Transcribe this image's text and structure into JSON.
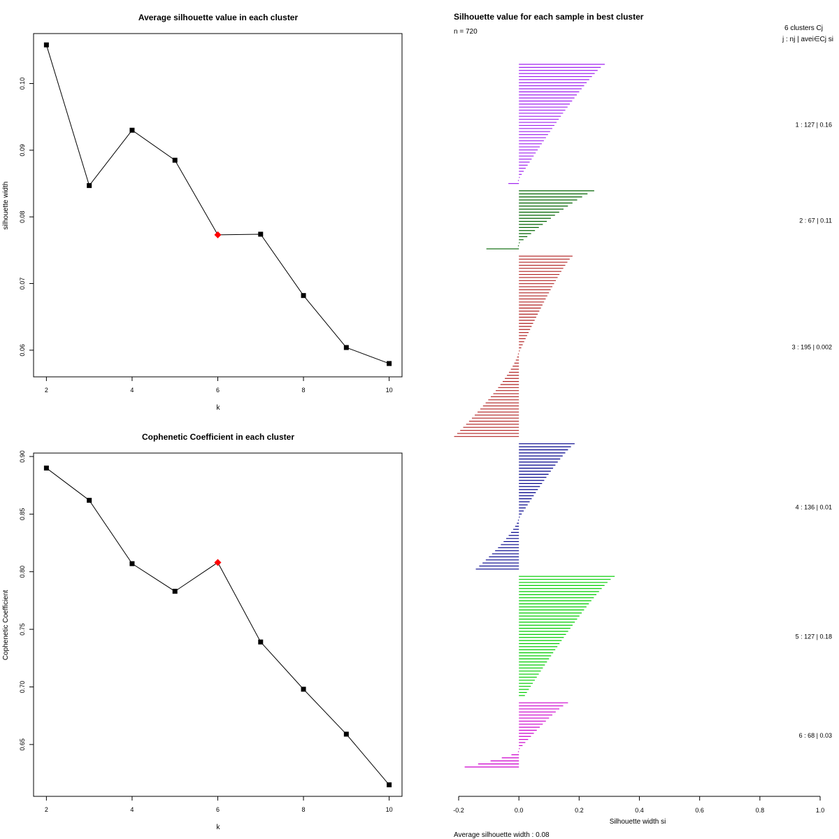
{
  "chart_data": [
    {
      "type": "line",
      "title": "Average silhouette value in each cluster",
      "xlabel": "k",
      "ylabel": "silhouette width",
      "x": [
        2,
        3,
        4,
        5,
        6,
        7,
        8,
        9,
        10
      ],
      "values": [
        0.1058,
        0.0847,
        0.093,
        0.0885,
        0.0773,
        0.0774,
        0.0682,
        0.0604,
        0.058
      ],
      "highlight_k": 6,
      "highlight_color": "#ff0000",
      "xlim": [
        1.7,
        10.3
      ],
      "ylim": [
        0.056,
        0.1075
      ],
      "x_ticks": [
        2,
        4,
        6,
        8,
        10
      ],
      "y_ticks": [
        0.06,
        0.07,
        0.08,
        0.09,
        0.1
      ],
      "x_tick_labels": [
        "2",
        "4",
        "6",
        "8",
        "10"
      ],
      "y_tick_labels": [
        "0.06",
        "0.07",
        "0.08",
        "0.09",
        "0.10"
      ]
    },
    {
      "type": "line",
      "title": "Cophenetic Coefficient in each cluster",
      "xlabel": "k",
      "ylabel": "Cophenetic Coefficient",
      "x": [
        2,
        3,
        4,
        5,
        6,
        7,
        8,
        9,
        10
      ],
      "values": [
        0.89,
        0.862,
        0.807,
        0.783,
        0.808,
        0.739,
        0.698,
        0.659,
        0.615
      ],
      "highlight_k": 6,
      "highlight_color": "#ff0000",
      "xlim": [
        1.7,
        10.3
      ],
      "ylim": [
        0.605,
        0.903
      ],
      "x_ticks": [
        2,
        4,
        6,
        8,
        10
      ],
      "y_ticks": [
        0.65,
        0.7,
        0.75,
        0.8,
        0.85,
        0.9
      ],
      "x_tick_labels": [
        "2",
        "4",
        "6",
        "8",
        "10"
      ],
      "y_tick_labels": [
        "0.65",
        "0.70",
        "0.75",
        "0.80",
        "0.85",
        "0.90"
      ]
    },
    {
      "type": "bar",
      "orientation": "horizontal",
      "title": "Silhouette value for each sample in best cluster",
      "n_label": "n = 720",
      "header": "6  clusters  Cj",
      "subheader": "j :  nj | avei∈Cj  si",
      "xlabel": "Silhouette width si",
      "footer": "Average silhouette width :  0.08",
      "xlim": [
        -0.2,
        1.0
      ],
      "x_ticks": [
        -0.2,
        0.0,
        0.2,
        0.4,
        0.6,
        0.8,
        1.0
      ],
      "x_tick_labels": [
        "-0.2",
        "0.0",
        "0.2",
        "0.4",
        "0.6",
        "0.8",
        "1.0"
      ],
      "series": [
        {
          "name": "1",
          "n": 127,
          "avg": 0.16,
          "label": "1 :   127  |  0.16",
          "color": "#a020f0",
          "max": 0.285,
          "min": -0.035,
          "neg": 2,
          "bars": 40
        },
        {
          "name": "2",
          "n": 67,
          "avg": 0.11,
          "label": "2 :   67  |  0.11",
          "color": "#006400",
          "max": 0.25,
          "min": -0.108,
          "neg": 2,
          "bars": 20
        },
        {
          "name": "3",
          "n": 195,
          "avg": 0.002,
          "label": "3 :   195  |  0.002",
          "color": "#b22222",
          "max": 0.178,
          "min": -0.215,
          "neg": 28,
          "bars": 60
        },
        {
          "name": "4",
          "n": 136,
          "avg": 0.01,
          "label": "4 :   136  |  0.01",
          "color": "#00008b",
          "max": 0.185,
          "min": -0.143,
          "neg": 17,
          "bars": 42
        },
        {
          "name": "5",
          "n": 127,
          "avg": 0.18,
          "label": "5 :   127  |  0.18",
          "color": "#00cd00",
          "max": 0.318,
          "min": 0.02,
          "neg": 0,
          "bars": 40
        },
        {
          "name": "6",
          "n": 68,
          "avg": 0.03,
          "label": "6 :   68  |  0.03",
          "color": "#cd00cd",
          "max": 0.163,
          "min": -0.18,
          "neg": 6,
          "bars": 22
        }
      ]
    }
  ]
}
